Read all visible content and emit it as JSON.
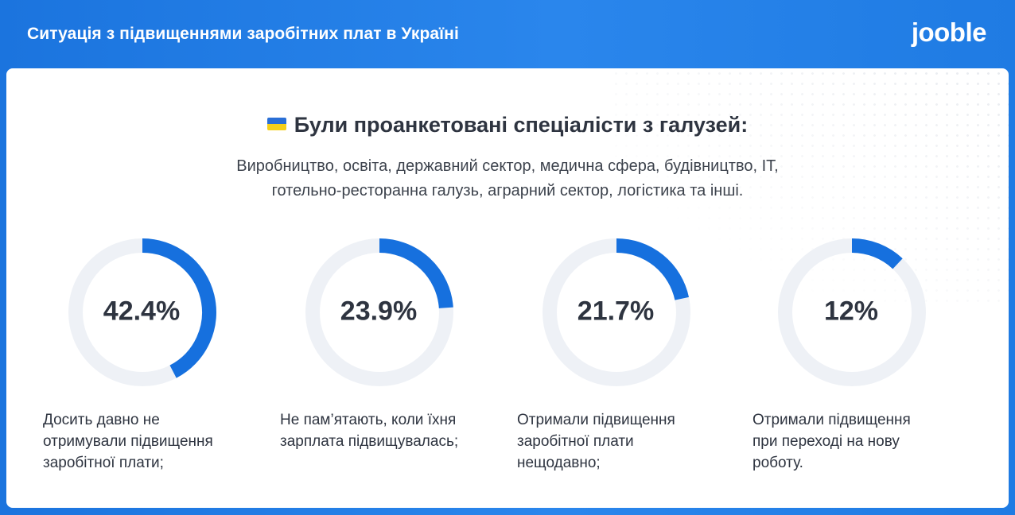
{
  "header": {
    "title": "Ситуація з підвищеннями заробітних плат в Україні",
    "logo": "jooble"
  },
  "survey": {
    "heading": "Були проанкетовані спеціалісти з галузей:",
    "industries_line1": "Виробництво, освіта, державний сектор, медична сфера, будівництво, IT,",
    "industries_line2": "готельно-ресторанна галузь, аграрний сектор, логістика та інші."
  },
  "colors": {
    "accent": "#1670de",
    "track": "#eef1f6",
    "header": "#2380e8"
  },
  "chart_data": {
    "type": "pie",
    "title": "",
    "items": [
      {
        "value": 42.4,
        "value_label": "42.4%",
        "label_lines": [
          "Досить давно не",
          "отримували підвищення",
          "заробітної плати;"
        ]
      },
      {
        "value": 23.9,
        "value_label": "23.9%",
        "label_lines": [
          "Не пам’ятають, коли їхня",
          "зарплата підвищувалась;"
        ]
      },
      {
        "value": 21.7,
        "value_label": "21.7%",
        "label_lines": [
          "Отримали підвищення",
          "заробітної плати",
          "нещодавно;"
        ]
      },
      {
        "value": 12,
        "value_label": "12%",
        "label_lines": [
          "Отримали підвищення",
          "при переході на нову",
          "роботу."
        ]
      }
    ]
  }
}
